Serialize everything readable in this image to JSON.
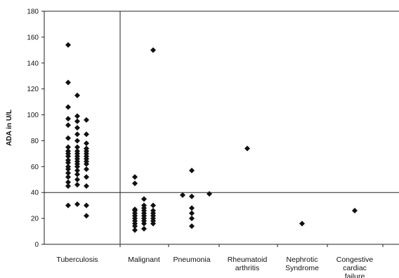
{
  "chart_data": {
    "type": "scatter",
    "title": "",
    "xlabel": "",
    "ylabel": "ADA in U/L",
    "ylim": [
      0,
      180
    ],
    "yticks": [
      0,
      20,
      40,
      60,
      80,
      100,
      120,
      140,
      160,
      180
    ],
    "categories": [
      "Tuberculosis",
      "Malignant",
      "Pneumonia",
      "Rheumatoid arthritis",
      "Nephrotic Syndrome",
      "Congestive cardiac failure"
    ],
    "category_label_lines": [
      [
        "Tuberculosis"
      ],
      [
        "Malignant"
      ],
      [
        "Pneumonia"
      ],
      [
        "Rheumatoid",
        "arthritis"
      ],
      [
        "Nephrotic",
        "Syndrome"
      ],
      [
        "Congestive",
        "cardiac",
        "failure"
      ]
    ],
    "reference_line_y": 40,
    "grid": false,
    "marker": "diamond",
    "series": [
      {
        "category": "Tuberculosis",
        "columns": [
          [
            30,
            45,
            48,
            52,
            55,
            58,
            60,
            63,
            65,
            68,
            70,
            72,
            75,
            82,
            92,
            97,
            106,
            125,
            154
          ],
          [
            31,
            46,
            50,
            54,
            57,
            60,
            62,
            64,
            66,
            68,
            70,
            72,
            75,
            80,
            85,
            90,
            95,
            99,
            115
          ],
          [
            22,
            30,
            45,
            52,
            58,
            62,
            64,
            66,
            68,
            70,
            72,
            74,
            78,
            85,
            96
          ]
        ]
      },
      {
        "category": "Malignant",
        "columns": [
          [
            11,
            14,
            16,
            18,
            20,
            22,
            24,
            26,
            27,
            47,
            52
          ],
          [
            12,
            16,
            18,
            20,
            22,
            24,
            26,
            28,
            30,
            35
          ],
          [
            16,
            18,
            20,
            22,
            24,
            26,
            30,
            150
          ]
        ]
      },
      {
        "category": "Pneumonia",
        "columns": [
          [
            38
          ],
          [
            14,
            20,
            24,
            28,
            37,
            57
          ],
          [
            39
          ]
        ]
      },
      {
        "category": "Rheumatoid arthritis",
        "columns": [
          [
            74
          ]
        ]
      },
      {
        "category": "Nephrotic Syndrome",
        "columns": [
          [
            16
          ]
        ]
      },
      {
        "category": "Congestive cardiac failure",
        "columns": [
          [
            26
          ]
        ]
      }
    ]
  }
}
